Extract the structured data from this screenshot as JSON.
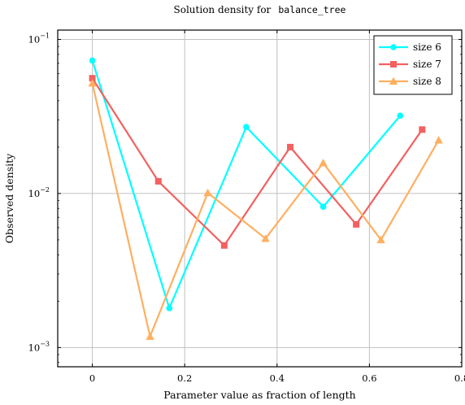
{
  "chart_data": {
    "type": "line",
    "title_prefix": "Solution density for",
    "title_code": "balance_tree",
    "xlabel": "Parameter value as fraction of length",
    "ylabel": "Observed density",
    "xlim": [
      -0.075,
      0.8
    ],
    "ylim": [
      0.00075,
      0.115
    ],
    "yscale": "log",
    "x_ticks": [
      0,
      0.2,
      0.4,
      0.6,
      0.8
    ],
    "x_tick_labels": [
      "0",
      "0.2",
      "0.4",
      "0.6",
      "0.8"
    ],
    "y_ticks": [
      0.001,
      0.01,
      0.1
    ],
    "y_tick_labels": [
      {
        "base": "10",
        "exp": "−3"
      },
      {
        "base": "10",
        "exp": "−2"
      },
      {
        "base": "10",
        "exp": "−1"
      }
    ],
    "grid": true,
    "legend_position": "top-right",
    "series": [
      {
        "name": "size 6",
        "color": "#00ffff",
        "marker": "circle",
        "x": [
          0,
          0.1667,
          0.3333,
          0.5,
          0.6667
        ],
        "y": [
          0.073,
          0.0018,
          0.027,
          0.0082,
          0.032
        ]
      },
      {
        "name": "size 7",
        "color": "#f36060",
        "marker": "square",
        "x": [
          0,
          0.1429,
          0.2857,
          0.4286,
          0.5714,
          0.7143
        ],
        "y": [
          0.056,
          0.012,
          0.0046,
          0.02,
          0.0063,
          0.026
        ]
      },
      {
        "name": "size 8",
        "color": "#ffaf60",
        "marker": "triangle",
        "x": [
          0,
          0.125,
          0.25,
          0.375,
          0.5,
          0.625,
          0.75
        ],
        "y": [
          0.052,
          0.00118,
          0.0101,
          0.0051,
          0.0158,
          0.005,
          0.0222
        ]
      }
    ]
  }
}
